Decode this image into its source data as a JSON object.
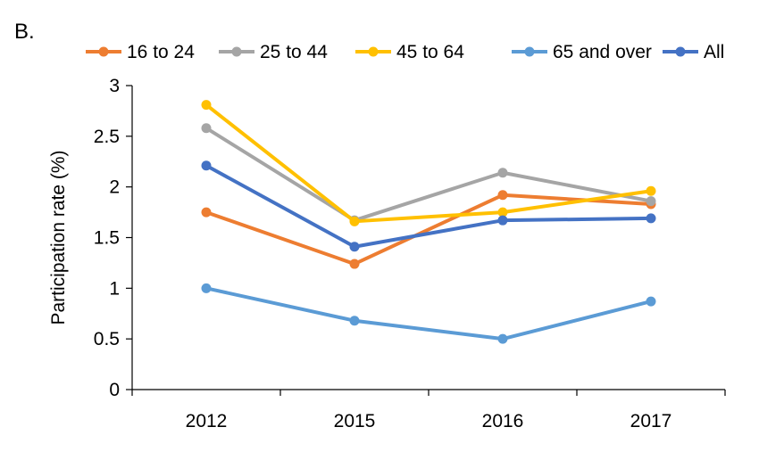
{
  "panel_label": "B.",
  "chart_data": {
    "type": "line",
    "title": "",
    "xlabel": "",
    "ylabel": "Participation rate (%)",
    "categories": [
      "2012",
      "2015",
      "2016",
      "2017"
    ],
    "ylim": [
      0,
      3
    ],
    "yticks": [
      "0",
      "0.5",
      "1",
      "1.5",
      "2",
      "2.5",
      "3"
    ],
    "grid": false,
    "legend_position": "top",
    "series": [
      {
        "name": "16 to 24",
        "color": "#ED7D31",
        "values": [
          1.75,
          1.24,
          1.92,
          1.83
        ]
      },
      {
        "name": "25 to 44",
        "color": "#A5A5A5",
        "values": [
          2.58,
          1.67,
          2.14,
          1.86
        ]
      },
      {
        "name": "45 to 64",
        "color": "#FFC000",
        "values": [
          2.81,
          1.66,
          1.75,
          1.96
        ]
      },
      {
        "name": "65 and over",
        "color": "#5B9BD5",
        "values": [
          1.0,
          0.68,
          0.5,
          0.87
        ]
      },
      {
        "name": "All",
        "color": "#4472C4",
        "values": [
          2.21,
          1.41,
          1.67,
          1.69
        ]
      }
    ]
  }
}
